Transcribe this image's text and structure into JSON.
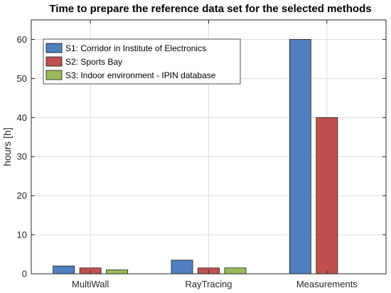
{
  "chart_data": {
    "type": "bar",
    "title": "Time to prepare the reference data set for the selected methods",
    "xlabel": "",
    "ylabel": "hours [h]",
    "categories": [
      "MultiWall",
      "RayTracing",
      "Measurements"
    ],
    "series": [
      {
        "name": "S1: Corridor in Institute of Electronics",
        "color": "#4f7fbe",
        "values": [
          2,
          3.5,
          60
        ]
      },
      {
        "name": "S2: Sports Bay",
        "color": "#c0504d",
        "values": [
          1.5,
          1.5,
          40
        ]
      },
      {
        "name": "S3: Indoor environment - IPIN database",
        "color": "#9bbb59",
        "values": [
          1,
          1.5,
          0
        ]
      }
    ],
    "ylim": [
      0,
      65
    ],
    "yticks": [
      0,
      10,
      20,
      30,
      40,
      50,
      60
    ],
    "grid": true,
    "legend_position": "top-left"
  }
}
